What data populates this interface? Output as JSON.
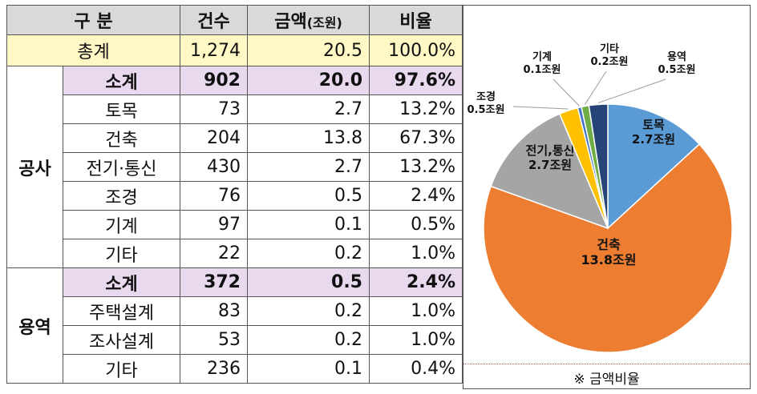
{
  "header": {
    "category": "구 분",
    "count": "건수",
    "amount_main": "금액",
    "amount_unit": "(조원)",
    "ratio": "비율"
  },
  "total": {
    "label": "총계",
    "count": "1,274",
    "amount": "20.5",
    "ratio": "100.0%"
  },
  "construction": {
    "group_label": "공사",
    "rows": [
      {
        "label": "소계",
        "count": "902",
        "amount": "20.0",
        "ratio": "97.6%"
      },
      {
        "label": "토목",
        "count": "73",
        "amount": "2.7",
        "ratio": "13.2%"
      },
      {
        "label": "건축",
        "count": "204",
        "amount": "13.8",
        "ratio": "67.3%"
      },
      {
        "label": "전기·통신",
        "count": "430",
        "amount": "2.7",
        "ratio": "13.2%"
      },
      {
        "label": "조경",
        "count": "76",
        "amount": "0.5",
        "ratio": "2.4%"
      },
      {
        "label": "기계",
        "count": "97",
        "amount": "0.1",
        "ratio": "0.5%"
      },
      {
        "label": "기타",
        "count": "22",
        "amount": "0.2",
        "ratio": "1.0%"
      }
    ]
  },
  "service": {
    "group_label": "용역",
    "rows": [
      {
        "label": "소계",
        "count": "372",
        "amount": "0.5",
        "ratio": "2.4%"
      },
      {
        "label": "주택설계",
        "count": "83",
        "amount": "0.2",
        "ratio": "1.0%"
      },
      {
        "label": "조사설계",
        "count": "53",
        "amount": "0.2",
        "ratio": "1.0%"
      },
      {
        "label": "기타",
        "count": "236",
        "amount": "0.1",
        "ratio": "0.4%"
      }
    ]
  },
  "caption": "※ 금액비율",
  "chart_data": {
    "type": "pie",
    "unit": "조원",
    "slices": [
      {
        "name": "토목",
        "label": "2.7조원",
        "value": 2.7,
        "color": "#5b9bd5"
      },
      {
        "name": "건축",
        "label": "13.8조원",
        "value": 13.8,
        "color": "#ed7d31"
      },
      {
        "name": "전기,통신",
        "label": "2.7조원",
        "value": 2.7,
        "color": "#a5a5a5"
      },
      {
        "name": "조경",
        "label": "0.5조원",
        "value": 0.5,
        "color": "#ffc000"
      },
      {
        "name": "기계",
        "label": "0.1조원",
        "value": 0.1,
        "color": "#4472c4"
      },
      {
        "name": "기타",
        "label": "0.2조원",
        "value": 0.2,
        "color": "#70ad47"
      },
      {
        "name": "용역",
        "label": "0.5조원",
        "value": 0.5,
        "color": "#264478"
      }
    ]
  }
}
